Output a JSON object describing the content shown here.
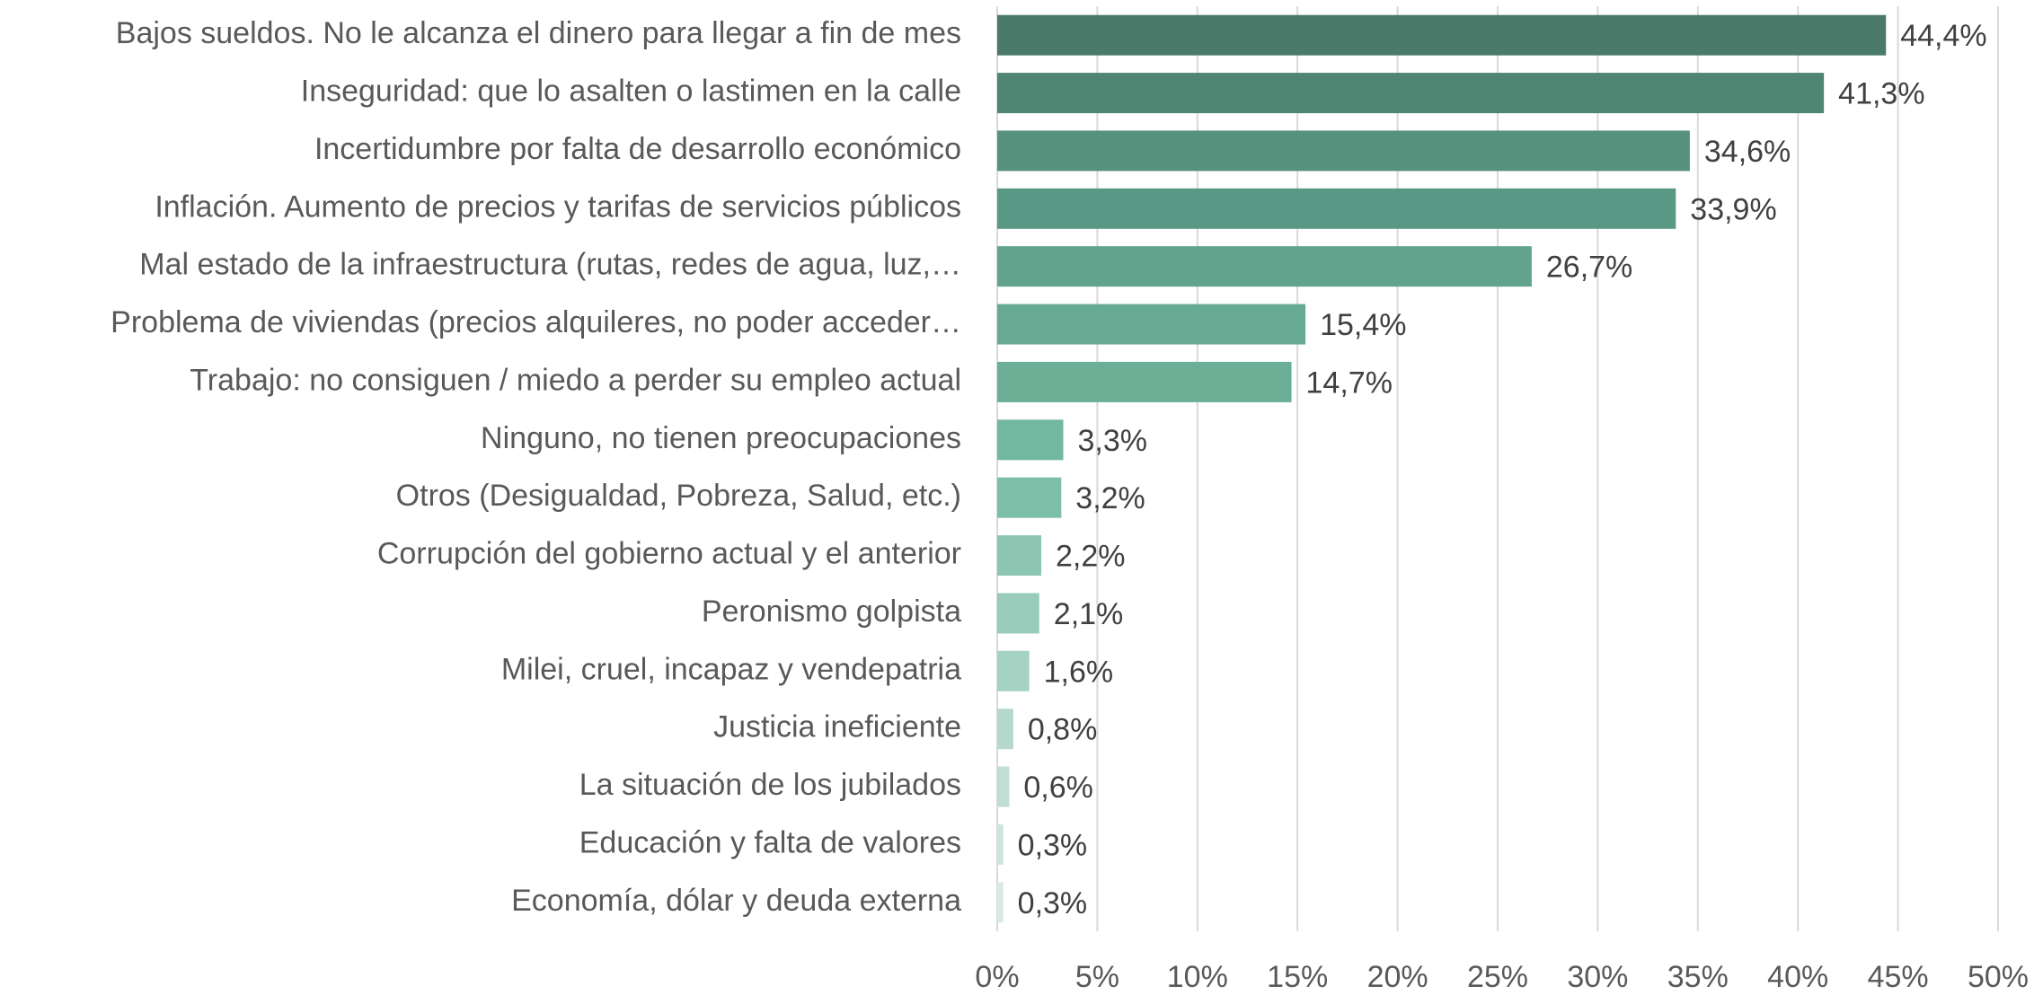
{
  "chart_data": {
    "type": "barh",
    "categories": [
      "Bajos sueldos. No le alcanza el dinero para llegar a fin de mes",
      "Inseguridad: que lo asalten o lastimen en la calle",
      "Incertidumbre por falta de desarrollo económico",
      "Inflación. Aumento de precios y tarifas de servicios públicos",
      "Mal estado de la infraestructura (rutas, redes de agua, luz,…",
      "Problema de viviendas (precios alquileres, no poder acceder…",
      "Trabajo: no consiguen / miedo a perder su empleo actual",
      "Ninguno, no tienen preocupaciones",
      "Otros (Desigualdad, Pobreza, Salud, etc.)",
      "Corrupción del gobierno actual y el anterior",
      "Peronismo golpista",
      "Milei, cruel, incapaz y vendepatria",
      "Justicia ineficiente",
      "La situación de los jubilados",
      "Educación y falta de valores",
      "Economía, dólar y deuda externa"
    ],
    "values": [
      44.4,
      41.3,
      34.6,
      33.9,
      26.7,
      15.4,
      14.7,
      3.3,
      3.2,
      2.2,
      2.1,
      1.6,
      0.8,
      0.6,
      0.3,
      0.3
    ],
    "value_labels": [
      "44,4%",
      "41,3%",
      "34,6%",
      "33,9%",
      "26,7%",
      "15,4%",
      "14,7%",
      "3,3%",
      "3,2%",
      "2,2%",
      "2,1%",
      "1,6%",
      "0,8%",
      "0,6%",
      "0,3%",
      "0,3%"
    ],
    "colors": [
      "#4b7a6b",
      "#4f8573",
      "#55917d",
      "#599884",
      "#62a38d",
      "#67aa93",
      "#6caf97",
      "#72b8a0",
      "#7cbfa8",
      "#8cc6b2",
      "#98cbb9",
      "#a6d2c3",
      "#b4d9cc",
      "#c0ded4",
      "#cde5dc",
      "#d8eae4"
    ],
    "xlim": [
      0,
      50
    ],
    "xticks": [
      {
        "value": 0,
        "label": "0%"
      },
      {
        "value": 5,
        "label": "5%"
      },
      {
        "value": 10,
        "label": "10%"
      },
      {
        "value": 15,
        "label": "15%"
      },
      {
        "value": 20,
        "label": "20%"
      },
      {
        "value": 25,
        "label": "25%"
      },
      {
        "value": 30,
        "label": "30%"
      },
      {
        "value": 35,
        "label": "35%"
      },
      {
        "value": 40,
        "label": "40%"
      },
      {
        "value": 45,
        "label": "45%"
      },
      {
        "value": 50,
        "label": "50%"
      }
    ],
    "grid": true
  }
}
